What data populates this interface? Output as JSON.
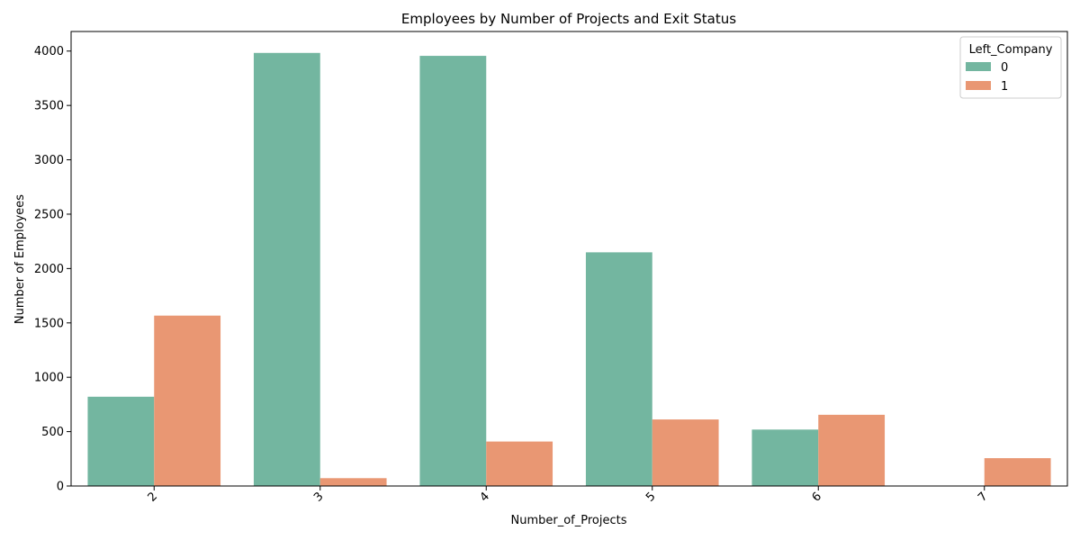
{
  "chart_data": {
    "type": "bar",
    "title": "Employees by Number of Projects and Exit Status",
    "xlabel": "Number_of_Projects",
    "ylabel": "Number of Employees",
    "categories": [
      "2",
      "3",
      "4",
      "5",
      "6",
      "7"
    ],
    "series": [
      {
        "name": "0",
        "color": "#73b6a0",
        "values": [
          821,
          3983,
          3956,
          2149,
          519,
          0
        ]
      },
      {
        "name": "1",
        "color": "#e99773",
        "values": [
          1567,
          72,
          409,
          612,
          655,
          256
        ]
      }
    ],
    "ylim": [
      0,
      4180
    ],
    "yticks": [
      0,
      500,
      1000,
      1500,
      2000,
      2500,
      3000,
      3500,
      4000
    ],
    "grid": false,
    "legend": {
      "title": "Left_Company",
      "placement": "top-right"
    }
  }
}
